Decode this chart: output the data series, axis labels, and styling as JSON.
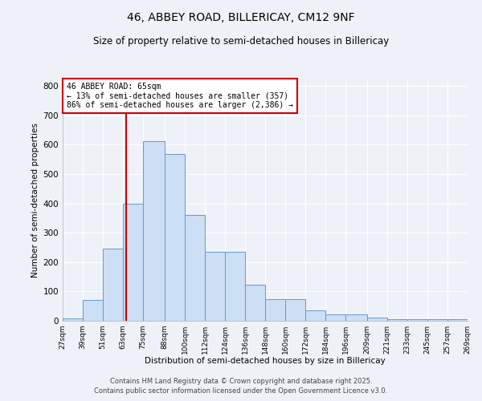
{
  "title1": "46, ABBEY ROAD, BILLERICAY, CM12 9NF",
  "title2": "Size of property relative to semi-detached houses in Billericay",
  "xlabel": "Distribution of semi-detached houses by size in Billericay",
  "ylabel": "Number of semi-detached properties",
  "bin_edges": [
    27,
    39,
    51,
    63,
    75,
    88,
    100,
    112,
    124,
    136,
    148,
    160,
    172,
    184,
    196,
    209,
    221,
    233,
    245,
    257,
    269
  ],
  "bar_heights": [
    8,
    70,
    245,
    400,
    613,
    568,
    360,
    235,
    235,
    122,
    75,
    75,
    35,
    22,
    22,
    10,
    5,
    5,
    5,
    5
  ],
  "bar_color": "#ccdff5",
  "bar_edge_color": "#6699cc",
  "red_line_x": 65,
  "annotation_title": "46 ABBEY ROAD: 65sqm",
  "annotation_line1": "← 13% of semi-detached houses are smaller (357)",
  "annotation_line2": "86% of semi-detached houses are larger (2,386) →",
  "annotation_box_color": "#ffffff",
  "annotation_box_edge_color": "#cc0000",
  "red_line_color": "#cc0000",
  "background_color": "#eef2f8",
  "grid_color": "#ffffff",
  "ylim": [
    0,
    820
  ],
  "yticks": [
    0,
    100,
    200,
    300,
    400,
    500,
    600,
    700,
    800
  ],
  "footer1": "Contains HM Land Registry data © Crown copyright and database right 2025.",
  "footer2": "Contains public sector information licensed under the Open Government Licence v3.0."
}
